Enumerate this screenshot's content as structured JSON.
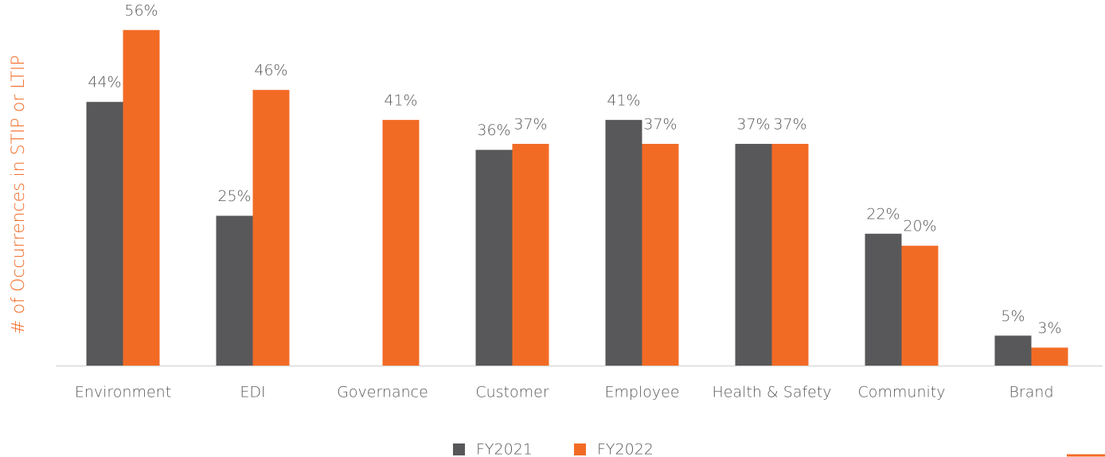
{
  "chart_data": {
    "type": "bar",
    "y_axis_label": "# of Occurrences in STIP or LTIP",
    "categories": [
      "Environment",
      "EDI",
      "Governance",
      "Customer",
      "Employee",
      "Health & Safety",
      "Community",
      "Brand"
    ],
    "series": [
      {
        "name": "FY2021",
        "color": "#58585a",
        "values": [
          44,
          25,
          null,
          36,
          41,
          37,
          22,
          5
        ],
        "value_labels": [
          "44%",
          "25%",
          null,
          "36%",
          "41%",
          "37%",
          "22%",
          "5%"
        ]
      },
      {
        "name": "FY2022",
        "color": "#f26b25",
        "values": [
          56,
          46,
          41,
          37,
          37,
          37,
          20,
          3
        ],
        "value_labels": [
          "56%",
          "46%",
          "41%",
          "37%",
          "37%",
          "37%",
          "20%",
          "3%"
        ]
      }
    ]
  }
}
